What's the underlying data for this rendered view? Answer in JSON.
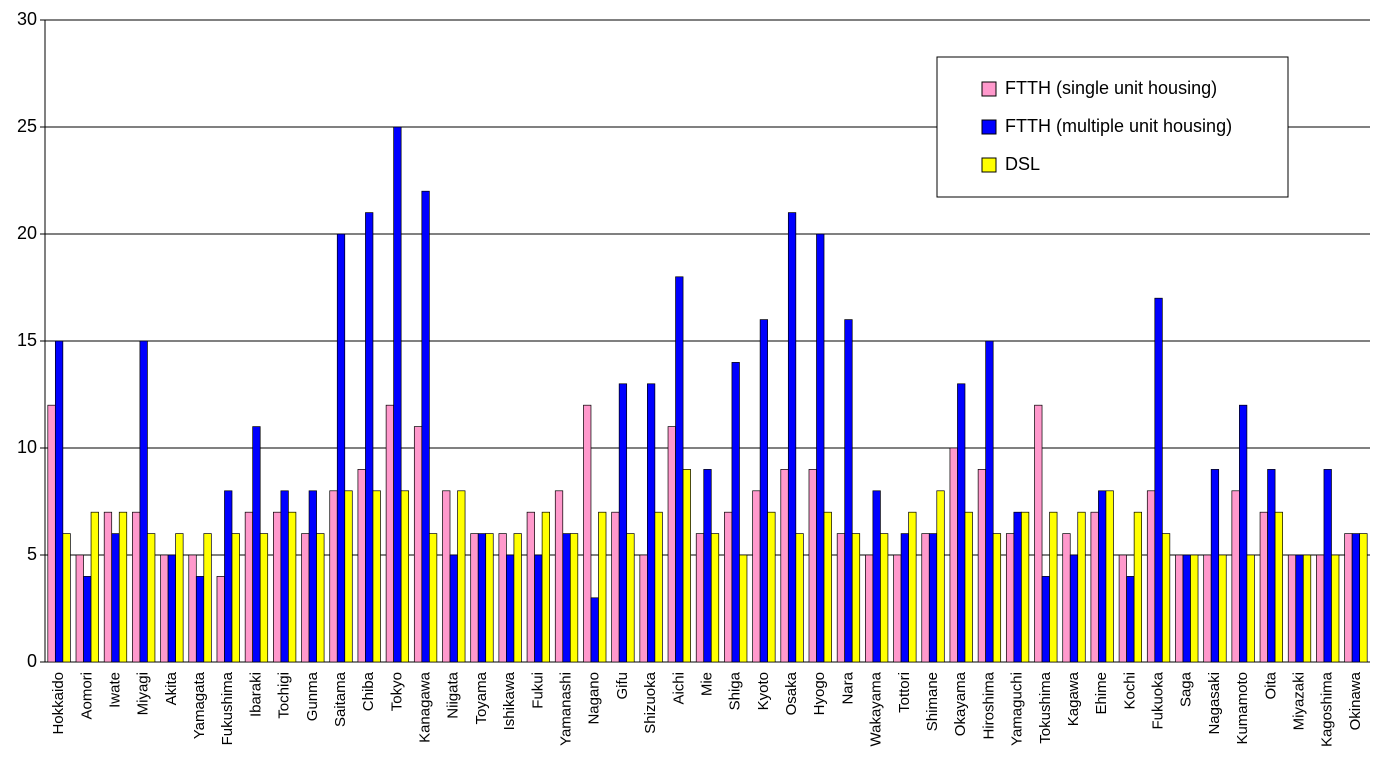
{
  "chart_data": {
    "type": "bar",
    "categories": [
      "Hokkaido",
      "Aomori",
      "Iwate",
      "Miyagi",
      "Akita",
      "Yamagata",
      "Fukushima",
      "Ibaraki",
      "Tochigi",
      "Gunma",
      "Saitama",
      "Chiba",
      "Tokyo",
      "Kanagawa",
      "Niigata",
      "Toyama",
      "Ishikawa",
      "Fukui",
      "Yamanashi",
      "Nagano",
      "Gifu",
      "Shizuoka",
      "Aichi",
      "Mie",
      "Shiga",
      "Kyoto",
      "Osaka",
      "Hyogo",
      "Nara",
      "Wakayama",
      "Tottori",
      "Shimane",
      "Okayama",
      "Hiroshima",
      "Yamaguchi",
      "Tokushima",
      "Kagawa",
      "Ehime",
      "Kochi",
      "Fukuoka",
      "Saga",
      "Nagasaki",
      "Kumamoto",
      "Oita",
      "Miyazaki",
      "Kagoshima",
      "Okinawa"
    ],
    "series": [
      {
        "name": "FTTH (single unit housing)",
        "color": "#ff99cc",
        "values": [
          12,
          5,
          7,
          7,
          5,
          5,
          4,
          7,
          7,
          6,
          8,
          9,
          12,
          11,
          8,
          6,
          6,
          7,
          8,
          12,
          7,
          5,
          11,
          6,
          7,
          8,
          9,
          9,
          6,
          5,
          5,
          6,
          10,
          9,
          6,
          12,
          6,
          7,
          5,
          8,
          5,
          5,
          8,
          7,
          5,
          5,
          6
        ]
      },
      {
        "name": "FTTH (multiple unit housing)",
        "color": "#0000ff",
        "values": [
          15,
          4,
          6,
          15,
          5,
          4,
          8,
          11,
          8,
          8,
          20,
          21,
          25,
          22,
          5,
          6,
          5,
          5,
          6,
          3,
          13,
          13,
          18,
          9,
          14,
          16,
          21,
          20,
          16,
          8,
          6,
          6,
          13,
          15,
          7,
          4,
          5,
          8,
          4,
          17,
          5,
          9,
          12,
          9,
          5,
          9,
          6
        ]
      },
      {
        "name": "DSL",
        "color": "#ffff00",
        "values": [
          6,
          7,
          7,
          6,
          6,
          6,
          6,
          6,
          7,
          6,
          8,
          8,
          8,
          6,
          8,
          6,
          6,
          7,
          6,
          7,
          6,
          7,
          9,
          6,
          5,
          7,
          6,
          7,
          6,
          6,
          7,
          8,
          7,
          6,
          7,
          7,
          7,
          8,
          7,
          6,
          5,
          5,
          5,
          7,
          5,
          5,
          6
        ]
      }
    ],
    "ylim": [
      0,
      30
    ],
    "yticks": [
      0,
      5,
      10,
      15,
      20,
      25,
      30
    ],
    "grid": true,
    "legend": "upper right"
  }
}
